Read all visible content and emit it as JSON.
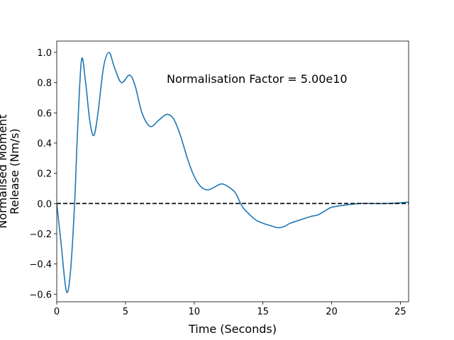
{
  "chart_data": {
    "type": "line",
    "xlabel": "Time (Seconds)",
    "ylabel": [
      "Normalised Moment",
      "Release (Nm/s)"
    ],
    "annotation": "Normalisation Factor = 5.00e10",
    "hline": 0,
    "xlim": [
      0,
      25.6
    ],
    "ylim": [
      -0.65,
      1.075
    ],
    "xticks": [
      0,
      5,
      10,
      15,
      20,
      25
    ],
    "yticks": [
      {
        "value": -0.6,
        "label": "−0.6"
      },
      {
        "value": -0.4,
        "label": "−0.4"
      },
      {
        "value": -0.2,
        "label": "−0.2"
      },
      {
        "value": 0,
        "label": "0.0"
      },
      {
        "value": 0.2,
        "label": "0.2"
      },
      {
        "value": 0.4,
        "label": "0.4"
      },
      {
        "value": 0.6,
        "label": "0.6"
      },
      {
        "value": 0.8,
        "label": "0.8"
      },
      {
        "value": 1,
        "label": "1.0"
      }
    ],
    "series": [
      {
        "color": "#1f77b4",
        "x": [
          0,
          0.3,
          0.7,
          1.0,
          1.3,
          1.5,
          1.8,
          2.1,
          2.4,
          2.7,
          3.0,
          3.4,
          3.8,
          4.2,
          4.7,
          5.3,
          5.7,
          6.2,
          6.8,
          7.4,
          8.0,
          8.5,
          9.0,
          9.5,
          10.0,
          10.5,
          11.0,
          11.5,
          12.0,
          12.5,
          13.0,
          13.5,
          14.0,
          14.5,
          15.0,
          15.5,
          16.1,
          16.6,
          17.0,
          18.0,
          18.5,
          19.0,
          19.5,
          20.0,
          21.0,
          22.0,
          23.0,
          24.0,
          25.0,
          25.6
        ],
        "values": [
          0,
          -0.25,
          -0.58,
          -0.45,
          0,
          0.45,
          0.95,
          0.8,
          0.55,
          0.45,
          0.6,
          0.9,
          1.0,
          0.9,
          0.8,
          0.85,
          0.78,
          0.6,
          0.51,
          0.55,
          0.59,
          0.56,
          0.45,
          0.3,
          0.18,
          0.11,
          0.09,
          0.11,
          0.13,
          0.11,
          0.07,
          -0.02,
          -0.07,
          -0.11,
          -0.13,
          -0.145,
          -0.16,
          -0.15,
          -0.13,
          -0.1,
          -0.085,
          -0.075,
          -0.05,
          -0.025,
          -0.01,
          0,
          0,
          0,
          0.005,
          0.01
        ]
      }
    ]
  }
}
